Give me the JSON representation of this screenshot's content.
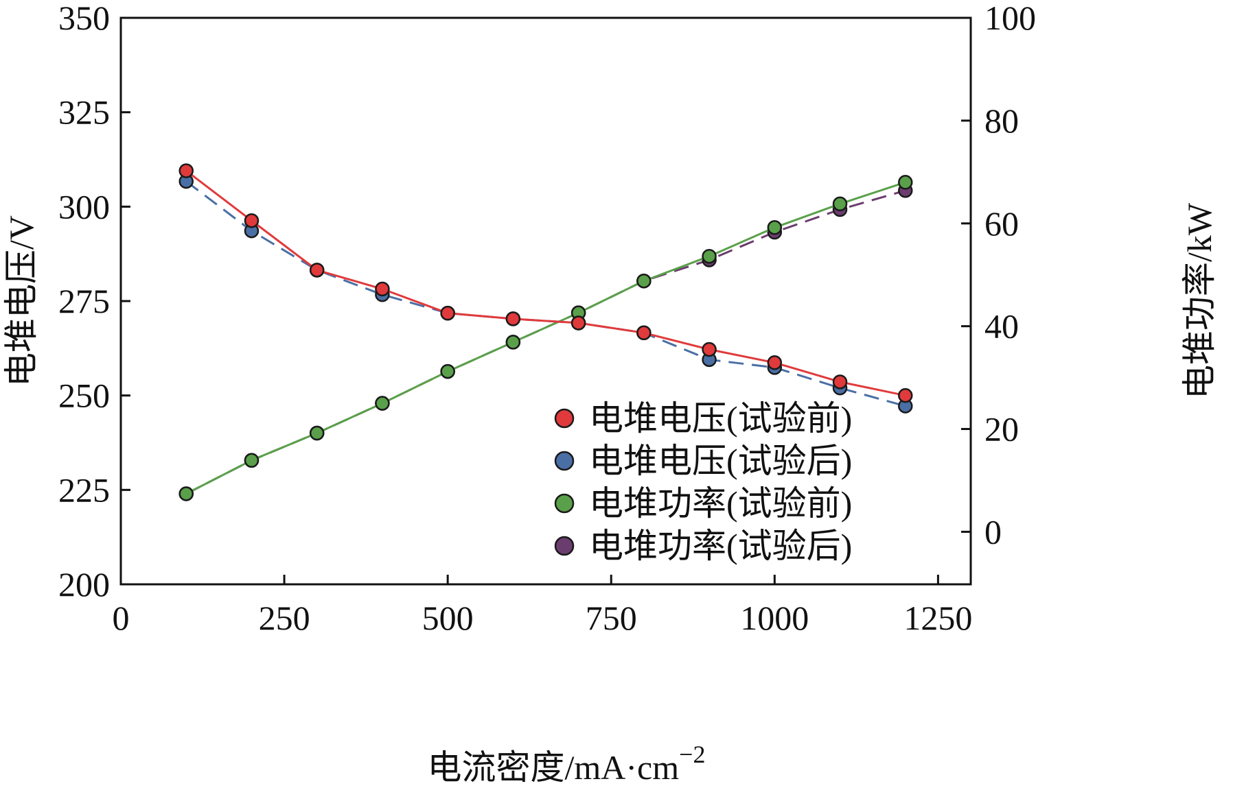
{
  "chart_data": {
    "type": "line",
    "title": "",
    "xlabel": "电流密度/mA·cm",
    "xlabel_sup": "−2",
    "ylabel": "电堆电压/V",
    "y2label": "电堆功率/kW",
    "xlim": [
      0,
      1300
    ],
    "ylim": [
      200,
      350
    ],
    "y2lim": [
      -10.22,
      100
    ],
    "xticks": [
      0,
      250,
      500,
      750,
      1000,
      1250
    ],
    "xtick_labels": [
      "0",
      "250",
      "500",
      "750",
      "1000",
      "1250"
    ],
    "yticks": [
      200,
      225,
      250,
      275,
      300,
      325,
      350
    ],
    "ytick_labels": [
      "200",
      "225",
      "250",
      "275",
      "300",
      "325",
      "350"
    ],
    "y2ticks": [
      0,
      20,
      40,
      60,
      80,
      100
    ],
    "y2tick_labels": [
      "0",
      "20",
      "40",
      "60",
      "80",
      "100"
    ],
    "grid": false,
    "legend_position": "bottom-right",
    "x": [
      100,
      200,
      300,
      400,
      500,
      600,
      700,
      800,
      900,
      1000,
      1100,
      1200
    ],
    "series": [
      {
        "name": "电堆电压(试验前)",
        "axis": "left",
        "color": "#e03a3c",
        "line": "solid",
        "values": [
          309.5,
          296.3,
          283.2,
          278.2,
          271.8,
          270.3,
          269.2,
          266.6,
          262.2,
          258.7,
          253.6,
          250.0
        ]
      },
      {
        "name": "电堆电压(试验后)",
        "axis": "left",
        "color": "#4a6fa5",
        "line": "dashed",
        "values": [
          306.7,
          293.6,
          283.2,
          276.7,
          271.8,
          270.3,
          269.2,
          266.6,
          259.5,
          257.4,
          252.0,
          247.2
        ]
      },
      {
        "name": "电堆功率(试验前)",
        "axis": "right",
        "color": "#5aa04a",
        "line": "solid",
        "values": [
          7.4,
          13.9,
          19.2,
          25.0,
          31.2,
          36.9,
          42.6,
          48.8,
          53.6,
          59.2,
          63.8,
          68.0
        ]
      },
      {
        "name": "电堆功率(试验后)",
        "axis": "right",
        "color": "#6b3d6e",
        "line": "dashed",
        "values": [
          7.4,
          13.9,
          19.2,
          25.0,
          31.2,
          36.9,
          42.6,
          48.8,
          52.9,
          58.3,
          62.7,
          66.4
        ]
      }
    ]
  }
}
